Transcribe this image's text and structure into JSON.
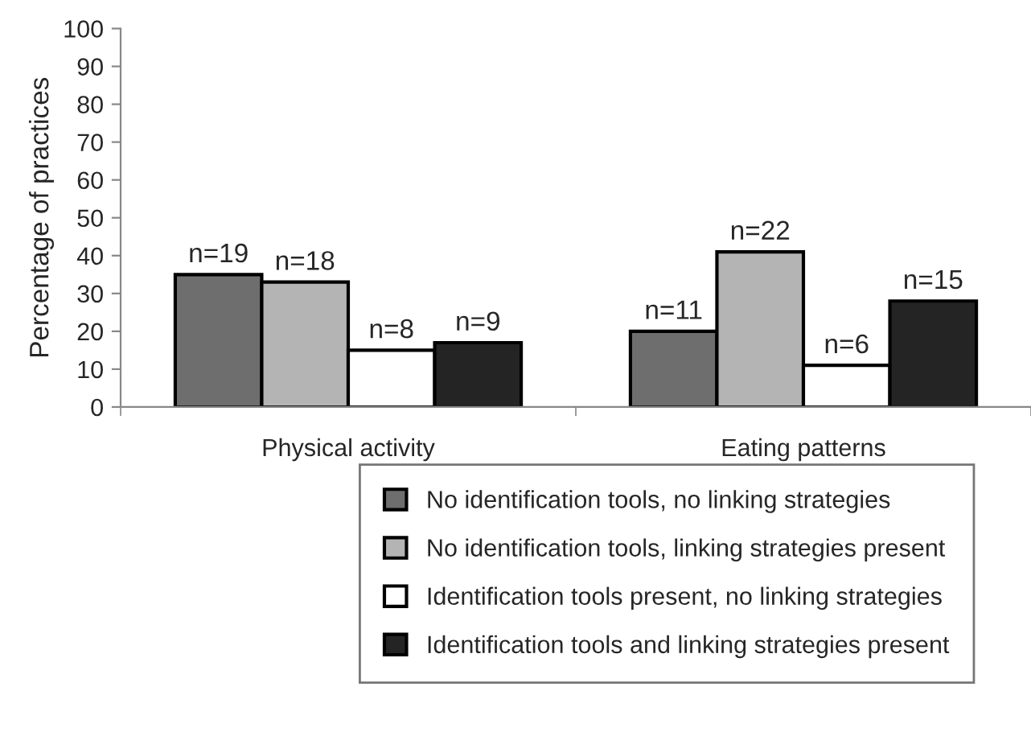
{
  "chart_data": {
    "type": "bar",
    "ylabel": "Percentage of practices",
    "categories": [
      "Physical activity",
      "Eating patterns"
    ],
    "series": [
      {
        "name": "No identification tools, no linking strategies",
        "color": "#6e6e6e",
        "values": [
          35,
          20
        ]
      },
      {
        "name": "No identification tools, linking strategies present",
        "color": "#b4b4b4",
        "values": [
          33,
          41
        ]
      },
      {
        "name": "Identification tools present, no linking strategies",
        "color": "#ffffff",
        "values": [
          15,
          11
        ]
      },
      {
        "name": "Identification tools and linking strategies present",
        "color": "#242424",
        "values": [
          17,
          28
        ]
      }
    ],
    "annotations": [
      "n=19",
      "n=18",
      "n=8",
      "n=9",
      "n=11",
      "n=22",
      "n=6",
      "n=15"
    ],
    "ylim": [
      0,
      100
    ],
    "yticks": [
      0,
      10,
      20,
      30,
      40,
      50,
      60,
      70,
      80,
      90,
      100
    ],
    "grid": false,
    "legend": "bottom"
  }
}
